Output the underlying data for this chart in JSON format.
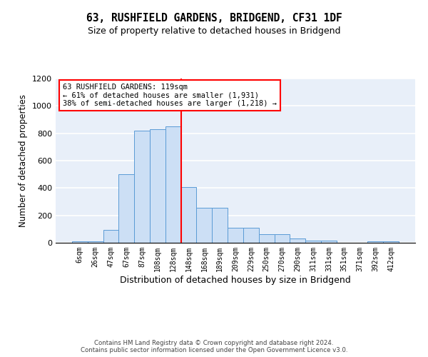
{
  "title": "63, RUSHFIELD GARDENS, BRIDGEND, CF31 1DF",
  "subtitle": "Size of property relative to detached houses in Bridgend",
  "xlabel": "Distribution of detached houses by size in Bridgend",
  "ylabel": "Number of detached properties",
  "footer_line1": "Contains HM Land Registry data © Crown copyright and database right 2024.",
  "footer_line2": "Contains public sector information licensed under the Open Government Licence v3.0.",
  "bar_labels": [
    "6sqm",
    "26sqm",
    "47sqm",
    "67sqm",
    "87sqm",
    "108sqm",
    "128sqm",
    "148sqm",
    "168sqm",
    "189sqm",
    "209sqm",
    "229sqm",
    "250sqm",
    "270sqm",
    "290sqm",
    "311sqm",
    "331sqm",
    "351sqm",
    "371sqm",
    "392sqm",
    "412sqm"
  ],
  "bar_values": [
    10,
    10,
    95,
    500,
    820,
    830,
    850,
    405,
    255,
    255,
    110,
    110,
    65,
    65,
    30,
    15,
    15,
    0,
    0,
    10,
    10
  ],
  "bar_color": "#ccdff5",
  "bar_edge_color": "#5b9bd5",
  "vline_color": "red",
  "vline_x": 6.5,
  "annotation_label": "63 RUSHFIELD GARDENS: 119sqm",
  "annotation_line1": "← 61% of detached houses are smaller (1,931)",
  "annotation_line2": "38% of semi-detached houses are larger (1,218) →",
  "ylim": [
    0,
    1200
  ],
  "yticks": [
    0,
    200,
    400,
    600,
    800,
    1000,
    1200
  ],
  "bg_color": "#e8eff9",
  "grid_color": "#ffffff"
}
